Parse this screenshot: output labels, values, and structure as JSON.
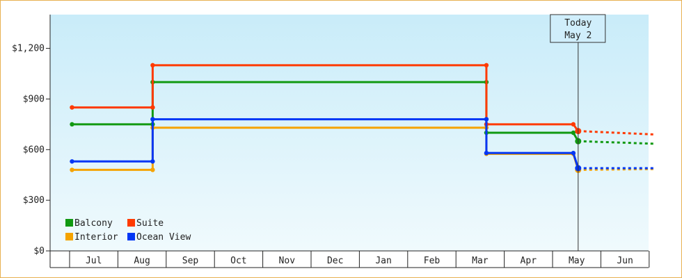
{
  "chart_data": {
    "type": "line",
    "title": "",
    "xlabel": "",
    "ylabel": "",
    "step": true,
    "x_categories": [
      "Jul",
      "Aug",
      "Sep",
      "Oct",
      "Nov",
      "Dec",
      "Jan",
      "Feb",
      "Mar",
      "Apr",
      "May",
      "Jun"
    ],
    "y_ticks": [
      "$0",
      "$300",
      "$600",
      "$900",
      "$1,200"
    ],
    "ylim": [
      0,
      1400
    ],
    "y_tick_values": [
      0,
      300,
      600,
      900,
      1200
    ],
    "today": {
      "line1": "Today",
      "line2": "May 2",
      "position": 10.03
    },
    "background": {
      "top": "#c9ecf9",
      "bottom": "#f0fafd"
    },
    "series": [
      {
        "name": "Balcony",
        "color": "#119911",
        "points": [
          [
            -0.45,
            750
          ],
          [
            1.22,
            750
          ],
          [
            1.22,
            1000
          ],
          [
            8.13,
            1000
          ],
          [
            8.13,
            700
          ],
          [
            9.93,
            700
          ],
          [
            10.03,
            650
          ]
        ],
        "forecast": [
          [
            10.03,
            650
          ],
          [
            11.6,
            635
          ]
        ]
      },
      {
        "name": "Suite",
        "color": "#ff3a00",
        "points": [
          [
            -0.45,
            850
          ],
          [
            1.22,
            850
          ],
          [
            1.22,
            1100
          ],
          [
            8.13,
            1100
          ],
          [
            8.13,
            750
          ],
          [
            9.93,
            750
          ],
          [
            10.03,
            710
          ]
        ],
        "forecast": [
          [
            10.03,
            710
          ],
          [
            11.6,
            690
          ]
        ]
      },
      {
        "name": "Interior",
        "color": "#f5a300",
        "points": [
          [
            -0.45,
            480
          ],
          [
            1.22,
            480
          ],
          [
            1.22,
            730
          ],
          [
            8.13,
            730
          ],
          [
            8.13,
            575
          ],
          [
            9.93,
            575
          ],
          [
            10.03,
            480
          ]
        ],
        "forecast": [
          [
            10.03,
            480
          ],
          [
            11.6,
            485
          ]
        ]
      },
      {
        "name": "Ocean View",
        "color": "#0036f5",
        "points": [
          [
            -0.45,
            530
          ],
          [
            1.22,
            530
          ],
          [
            1.22,
            780
          ],
          [
            8.13,
            780
          ],
          [
            8.13,
            580
          ],
          [
            9.93,
            580
          ],
          [
            10.03,
            490
          ]
        ],
        "forecast": [
          [
            10.03,
            490
          ],
          [
            11.6,
            490
          ]
        ]
      }
    ],
    "legend": {
      "placement": "bottom-left",
      "order": [
        "Balcony",
        "Suite",
        "Interior",
        "Ocean View"
      ]
    },
    "grid": false
  }
}
